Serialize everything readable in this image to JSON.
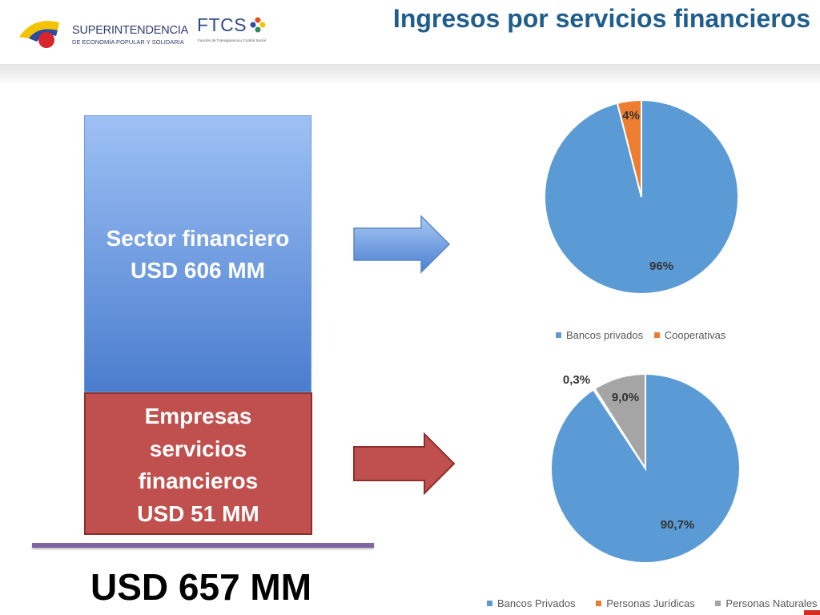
{
  "header": {
    "title": "Ingresos por servicios financieros",
    "logo_sup_line1": "SUPERINTENDENCIA",
    "logo_sup_line2": "DE ECONOMÍA POPULAR Y SOLIDARIA",
    "logo_ftcs": "FTCS",
    "logo_ftcs_sub": "Función de Transparencia y Control Social"
  },
  "stacked_bar": {
    "top_line1": "Sector financiero",
    "top_line2": "USD 606 MM",
    "bottom_line1": "Empresas",
    "bottom_line2": "servicios",
    "bottom_line3": "financieros",
    "bottom_line4": "USD 51 MM",
    "total": "USD 657 MM"
  },
  "colors": {
    "title": "#1f5e8c",
    "bar_top": "#4f81bd",
    "bar_bottom": "#c0504d",
    "pie_blue": "#5b9bd5",
    "pie_orange": "#ed7d31",
    "pie_gray": "#a5a5a5"
  },
  "chart_data": [
    {
      "type": "pie",
      "slices": [
        {
          "name": "Bancos privados",
          "value": 96,
          "label": "96%",
          "color": "#5b9bd5"
        },
        {
          "name": "Cooperativas",
          "value": 4,
          "label": "4%",
          "color": "#ed7d31"
        }
      ],
      "legend_position": "bottom"
    },
    {
      "type": "pie",
      "slices": [
        {
          "name": "Bancos Privados",
          "value": 90.7,
          "label": "90,7%",
          "color": "#5b9bd5"
        },
        {
          "name": "Personas Jurídicas",
          "value": 0.3,
          "label": "0,3%",
          "color": "#ed7d31"
        },
        {
          "name": "Personas Naturales",
          "value": 9.0,
          "label": "9,0%",
          "color": "#a5a5a5"
        }
      ],
      "legend_position": "bottom"
    }
  ]
}
